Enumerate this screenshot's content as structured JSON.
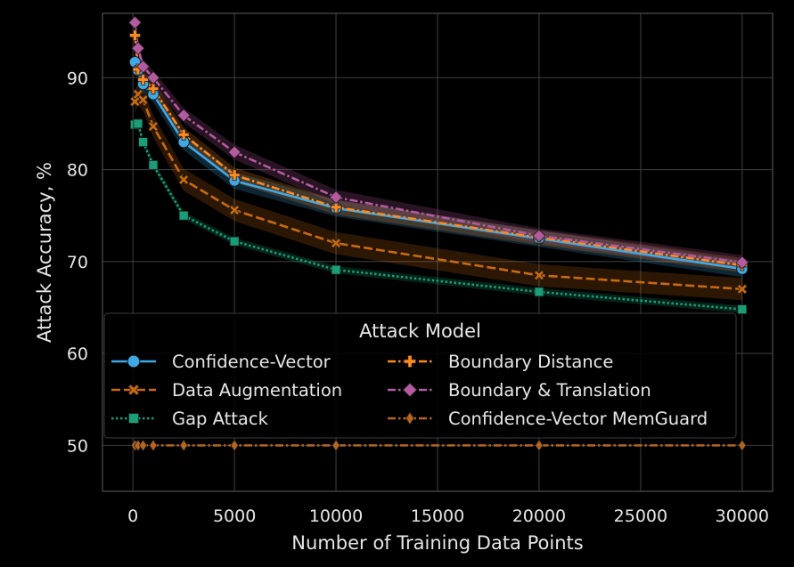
{
  "chart_data": {
    "type": "line",
    "xlabel": "Number of Training Data Points",
    "ylabel": "Attack Accuracy, %",
    "xlim": [
      -1500,
      31500
    ],
    "ylim": [
      45,
      97
    ],
    "xticks": [
      0,
      5000,
      10000,
      15000,
      20000,
      25000,
      30000
    ],
    "xtick_labels": [
      "0",
      "5000",
      "10000",
      "15000",
      "20000",
      "25000",
      "30000"
    ],
    "yticks": [
      50,
      60,
      70,
      80,
      90
    ],
    "ytick_labels": [
      "50",
      "60",
      "70",
      "80",
      "90"
    ],
    "grid": true,
    "legend": {
      "title": "Attack Model",
      "placement": "lower-left",
      "columns": 2
    },
    "x": [
      100,
      250,
      500,
      1000,
      2500,
      5000,
      10000,
      20000,
      30000
    ],
    "series": [
      {
        "name": "Confidence-Vector",
        "color": "#3ea9e6",
        "dash": "solid",
        "marker": "circle",
        "values": [
          91.7,
          90.8,
          89.3,
          88.2,
          83.0,
          78.8,
          75.8,
          72.5,
          69.2
        ],
        "band": 0.9
      },
      {
        "name": "Data Augmentation",
        "color": "#c96a10",
        "dash": "dashed",
        "marker": "x",
        "values": [
          87.4,
          88.2,
          87.6,
          84.7,
          78.9,
          75.6,
          72.0,
          68.5,
          67.0
        ],
        "band": 1.2
      },
      {
        "name": "Gap Attack",
        "color": "#1a9e77",
        "dash": "dotted",
        "marker": "square",
        "values": [
          84.9,
          85.0,
          83.0,
          80.5,
          75.0,
          72.2,
          69.1,
          66.7,
          64.8
        ],
        "band": 0.4
      },
      {
        "name": "Boundary Distance",
        "color": "#ff8a1e",
        "dash": "dashdot",
        "marker": "plus",
        "values": [
          94.6,
          90.9,
          89.8,
          88.8,
          83.8,
          79.4,
          75.9,
          72.6,
          69.6
        ],
        "band": 0.8
      },
      {
        "name": "Boundary & Translation",
        "color": "#b45ba0",
        "dash": "dashdot",
        "marker": "diamond",
        "values": [
          96.0,
          93.2,
          91.2,
          90.0,
          85.9,
          81.9,
          77.0,
          72.8,
          69.9
        ],
        "band": 0.8
      },
      {
        "name": "Confidence-Vector MemGuard",
        "color": "#b5651d",
        "dash": "dashdot",
        "marker": "thin_diamond",
        "values": [
          50.0,
          50.0,
          50.0,
          50.0,
          50.0,
          50.0,
          50.0,
          50.0,
          50.0
        ],
        "band": 0
      }
    ]
  }
}
